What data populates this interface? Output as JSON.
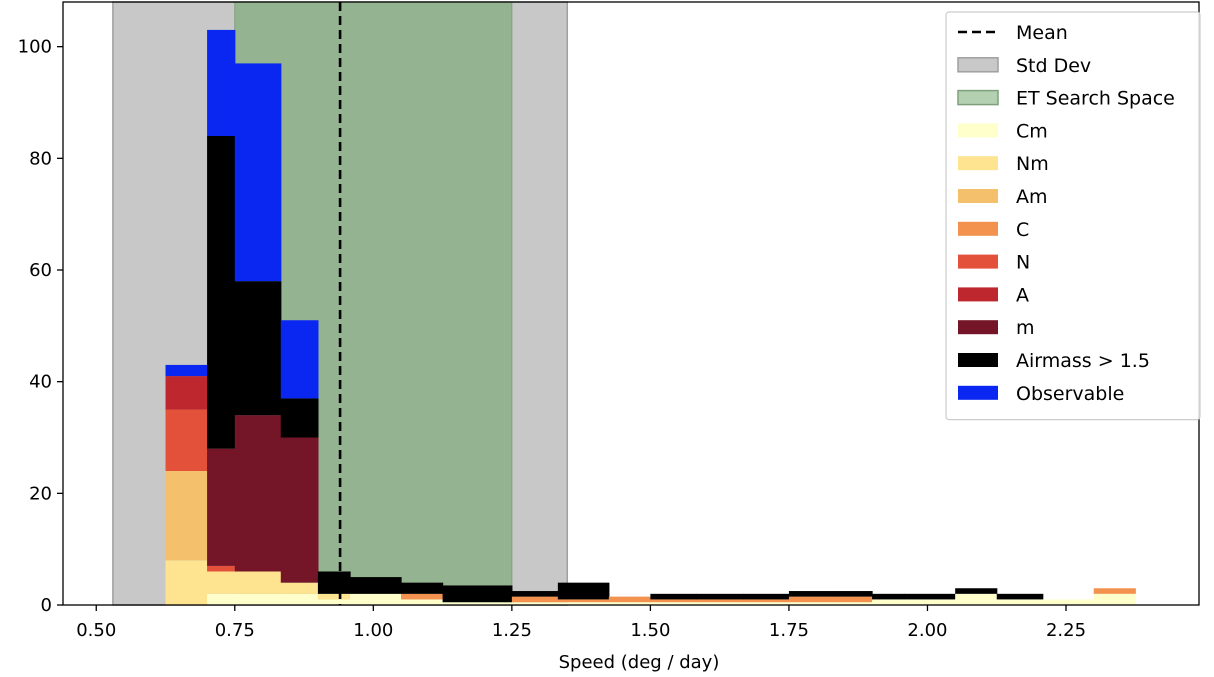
{
  "chart_data": {
    "type": "bar",
    "subtype": "stacked-histogram",
    "title": "",
    "xlabel": "Speed (deg / day)",
    "ylabel": "",
    "xlim": [
      0.44,
      2.49
    ],
    "ylim": [
      0,
      108
    ],
    "x_ticks": [
      0.5,
      0.75,
      1.0,
      1.25,
      1.5,
      1.75,
      2.0,
      2.25
    ],
    "x_tick_labels": [
      "0.50",
      "0.75",
      "1.00",
      "1.25",
      "1.50",
      "1.75",
      "2.00",
      "2.25"
    ],
    "y_ticks": [
      0,
      20,
      40,
      60,
      80,
      100
    ],
    "y_tick_labels": [
      "0",
      "20",
      "40",
      "60",
      "80",
      "100"
    ],
    "grid": false,
    "legend_position": "top-right",
    "mean": {
      "name": "Mean",
      "x": 0.94,
      "color": "#000000"
    },
    "std_dev": {
      "name": "Std Dev",
      "range": [
        0.53,
        1.35
      ],
      "color": "#c8c8c8"
    },
    "search_space": {
      "name": "ET Search Space",
      "range": [
        0.75,
        1.25
      ],
      "color": "#93b391"
    },
    "bin_edges": [
      0.625,
      0.7,
      0.75,
      0.833,
      0.9,
      0.958,
      1.05,
      1.125,
      1.25,
      1.333,
      1.425,
      1.5,
      1.583,
      1.667,
      1.75,
      1.833,
      1.9,
      1.958,
      2.05,
      2.125,
      2.208,
      2.3,
      2.375
    ],
    "series": [
      {
        "name": "Cm",
        "color": "#ffffcc",
        "values": [
          0,
          2,
          2,
          2,
          1,
          2,
          1,
          0.5,
          0.5,
          0.5,
          0.5,
          0.5,
          0.5,
          0.5,
          0.5,
          0.5,
          1,
          1,
          2,
          1,
          1,
          2,
          5
        ]
      },
      {
        "name": "Nm",
        "color": "#fee391",
        "values": [
          8,
          4,
          4,
          2,
          1,
          0,
          0,
          0,
          0,
          0,
          0,
          0,
          0,
          0,
          0,
          0,
          0,
          0,
          0,
          0,
          0,
          0,
          0
        ]
      },
      {
        "name": "Am",
        "color": "#f4c06b",
        "values": [
          16,
          0,
          0,
          0,
          0,
          0,
          0,
          0,
          0,
          0,
          0,
          0,
          0,
          0,
          0,
          0,
          0,
          0,
          0,
          0,
          0,
          0,
          0
        ]
      },
      {
        "name": "C",
        "color": "#f2924e",
        "values": [
          0,
          0,
          0,
          0,
          0,
          0,
          1,
          0,
          1,
          0.5,
          1,
          0.5,
          0.5,
          0.5,
          1,
          1,
          0,
          0,
          0,
          0,
          0,
          1,
          4
        ]
      },
      {
        "name": "N",
        "color": "#e4513a",
        "values": [
          11,
          1,
          0,
          0,
          0,
          0,
          0,
          0,
          0,
          0,
          0,
          0,
          0,
          0,
          0,
          0,
          0,
          0,
          0,
          0,
          0,
          0,
          0
        ]
      },
      {
        "name": "A",
        "color": "#be272e",
        "values": [
          6,
          0,
          0,
          0,
          0,
          0,
          0,
          0,
          0,
          0,
          0,
          0,
          0,
          0,
          0,
          0,
          0,
          0,
          0,
          0,
          0,
          0,
          0
        ]
      },
      {
        "name": "m",
        "color": "#741528",
        "values": [
          0,
          21,
          28,
          26,
          0,
          0,
          0,
          0,
          0,
          0,
          0,
          0,
          0,
          0,
          0,
          0,
          0,
          0,
          0,
          0,
          0,
          0,
          0
        ]
      },
      {
        "name": "Airmass > 1.5",
        "color": "#000000",
        "values": [
          0,
          56,
          24,
          7,
          4,
          3,
          2,
          3,
          1,
          3,
          0,
          1,
          1,
          1,
          1,
          1,
          1,
          1,
          1,
          1,
          0,
          0,
          0
        ]
      },
      {
        "name": "Observable",
        "color": "#0a27f2",
        "values": [
          2,
          19,
          39,
          14,
          0,
          0,
          0,
          0,
          0,
          0,
          0,
          0,
          0,
          0,
          0,
          0,
          0,
          0,
          0,
          0,
          0,
          0,
          0
        ]
      }
    ]
  }
}
